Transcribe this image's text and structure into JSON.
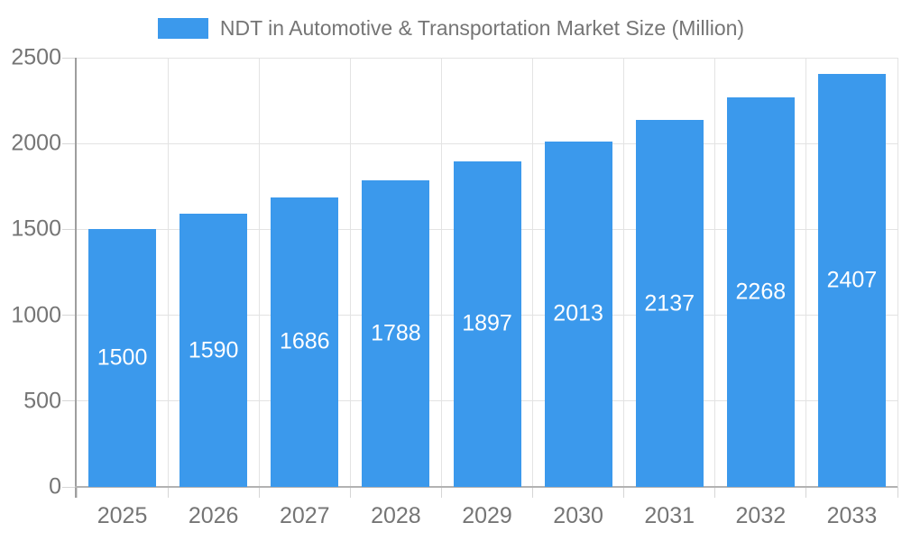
{
  "legend": {
    "label": "NDT in Automotive & Transportation Market Size (Million)",
    "swatch_color": "#3B99EC"
  },
  "chart_data": {
    "type": "bar",
    "title": "NDT in Automotive & Transportation Market Size (Million)",
    "categories": [
      "2025",
      "2026",
      "2027",
      "2028",
      "2029",
      "2030",
      "2031",
      "2032",
      "2033"
    ],
    "values": [
      1500,
      1590,
      1686,
      1788,
      1897,
      2013,
      2137,
      2268,
      2407
    ],
    "xlabel": "",
    "ylabel": "",
    "ylim": [
      0,
      2500
    ],
    "yticks": [
      0,
      500,
      1000,
      1500,
      2000,
      2500
    ],
    "grid": true,
    "legend_position": "top-center",
    "bar_color": "#3B99EC",
    "value_label_color": "#ffffff",
    "axis_label_color": "#757575",
    "gridline_color": "#e3e3e3"
  }
}
